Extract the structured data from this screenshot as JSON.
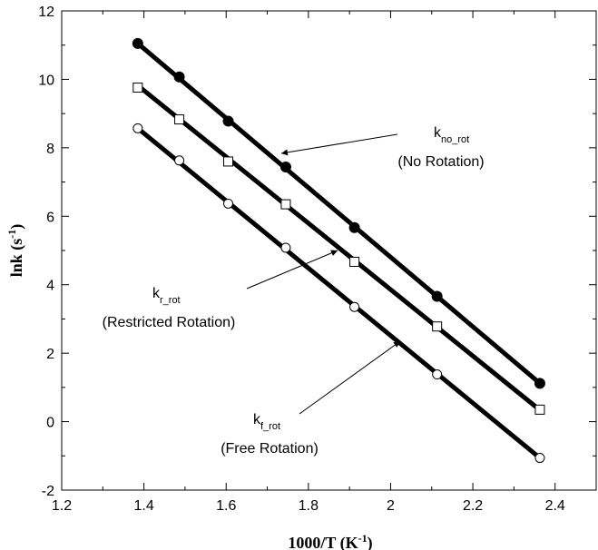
{
  "chart_data": {
    "type": "scatter",
    "xlabel": {
      "main": "1000/T (K",
      "sup": "-1",
      "close": ")"
    },
    "ylabel": {
      "main": "lnk (s",
      "sup": "-1",
      "close": ")"
    },
    "xlim": [
      1.2,
      2.5
    ],
    "ylim": [
      -2,
      12
    ],
    "x_ticks": [
      1.2,
      1.4,
      1.6,
      1.8,
      2.0,
      2.2,
      2.4
    ],
    "x_tick_labels": [
      "1.2",
      "1.4",
      "1.6",
      "1.8",
      "2",
      "2.2",
      "2.4"
    ],
    "y_ticks": [
      -2,
      0,
      2,
      4,
      6,
      8,
      10,
      12
    ],
    "y_tick_labels": [
      "-2",
      "0",
      "2",
      "4",
      "6",
      "8",
      "10",
      "12"
    ],
    "grid": false,
    "x": [
      1.385,
      1.486,
      1.605,
      1.745,
      1.912,
      2.113,
      2.363
    ],
    "series": [
      {
        "marker": "filled-circle",
        "values": [
          11.05,
          10.07,
          8.78,
          7.44,
          5.67,
          3.66,
          1.12
        ],
        "fit": {
          "x": [
            1.385,
            2.363
          ],
          "y": [
            11.05,
            1.12
          ]
        },
        "annotation": {
          "k": "k",
          "sub": "no_rot",
          "desc": "(No Rotation)"
        }
      },
      {
        "marker": "open-square",
        "values": [
          9.76,
          8.83,
          7.6,
          6.35,
          4.67,
          2.78,
          0.35
        ],
        "fit": {
          "x": [
            1.385,
            2.363
          ],
          "y": [
            9.82,
            0.34
          ]
        },
        "annotation": {
          "k": "k",
          "sub": "r_rot",
          "desc": "(Restricted Rotation)"
        }
      },
      {
        "marker": "open-circle",
        "values": [
          8.57,
          7.63,
          6.37,
          5.08,
          3.35,
          1.38,
          -1.06
        ],
        "fit": {
          "x": [
            1.385,
            2.363
          ],
          "y": [
            8.57,
            -1.06
          ]
        },
        "annotation": {
          "k": "k",
          "sub": "f_rot",
          "desc": "(Free Rotation)"
        }
      }
    ],
    "colors": {
      "line": "#000000",
      "marker": "#000000",
      "background": "#ffffff"
    }
  }
}
